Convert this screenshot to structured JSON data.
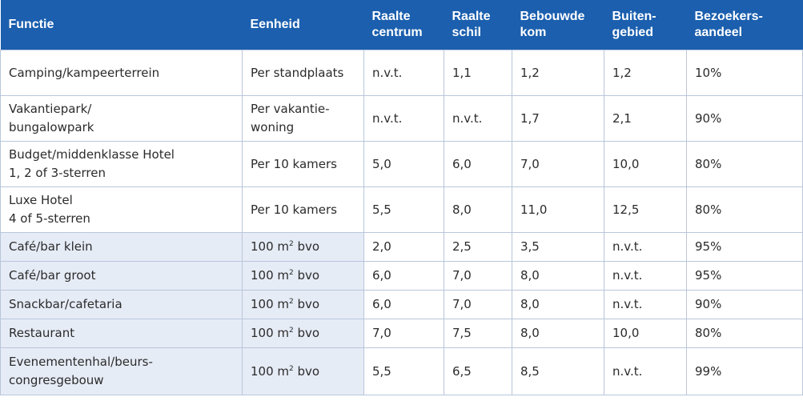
{
  "header": {
    "functie": [
      "Functie"
    ],
    "eenheid": [
      "Eenheid"
    ],
    "raalte_centrum": [
      "Raalte",
      "centrum"
    ],
    "raalte_schil": [
      "Raalte",
      "schil"
    ],
    "bebouwde_kom": [
      "Bebouwde",
      "kom"
    ],
    "buitengebied": [
      "Buiten-",
      "gebied"
    ],
    "bezoekersaandeel": [
      "Bezoekers-",
      "aandeel"
    ]
  },
  "rows": [
    {
      "functie": [
        "Camping/kampeerterrein"
      ],
      "eenheid": [
        "Per standplaats"
      ],
      "raalte_centrum": "n.v.t.",
      "raalte_schil": "1,1",
      "bebouwde_kom": "1,2",
      "buitengebied": "1,2",
      "bezoekersaandeel": "10%"
    },
    {
      "functie": [
        "Vakantiepark/",
        "bungalowpark"
      ],
      "eenheid": [
        "Per vakantie-",
        "woning"
      ],
      "raalte_centrum": "n.v.t.",
      "raalte_schil": "n.v.t.",
      "bebouwde_kom": "1,7",
      "buitengebied": "2,1",
      "bezoekersaandeel": "90%"
    },
    {
      "functie": [
        "Budget/middenklasse Hotel",
        "1, 2 of 3-sterren"
      ],
      "eenheid": [
        "Per 10 kamers"
      ],
      "raalte_centrum": "5,0",
      "raalte_schil": "6,0",
      "bebouwde_kom": "7,0",
      "buitengebied": "10,0",
      "bezoekersaandeel": "80%"
    },
    {
      "functie": [
        "Luxe Hotel",
        "4 of 5-sterren"
      ],
      "eenheid": [
        "Per 10 kamers"
      ],
      "raalte_centrum": "5,5",
      "raalte_schil": "8,0",
      "bebouwde_kom": "11,0",
      "buitengebied": "12,5",
      "bezoekersaandeel": "80%"
    },
    {
      "functie": [
        "Café/bar klein"
      ],
      "eenheid_prefix": "100 m",
      "eenheid_sup": "2",
      "eenheid_suffix": " bvo",
      "raalte_centrum": "2,0",
      "raalte_schil": "2,5",
      "bebouwde_kom": "3,5",
      "buitengebied": "n.v.t.",
      "bezoekersaandeel": "95%"
    },
    {
      "functie": [
        "Café/bar groot"
      ],
      "eenheid_prefix": "100 m",
      "eenheid_sup": "2",
      "eenheid_suffix": " bvo",
      "raalte_centrum": "6,0",
      "raalte_schil": "7,0",
      "bebouwde_kom": "8,0",
      "buitengebied": "n.v.t.",
      "bezoekersaandeel": "95%"
    },
    {
      "functie": [
        "Snackbar/cafetaria"
      ],
      "eenheid_prefix": "100 m",
      "eenheid_sup": "2",
      "eenheid_suffix": " bvo",
      "raalte_centrum": "6,0",
      "raalte_schil": "7,0",
      "bebouwde_kom": "8,0",
      "buitengebied": "n.v.t.",
      "bezoekersaandeel": "90%"
    },
    {
      "functie": [
        "Restaurant"
      ],
      "eenheid_prefix": "100 m",
      "eenheid_sup": "2",
      "eenheid_suffix": " bvo",
      "raalte_centrum": "7,0",
      "raalte_schil": "7,5",
      "bebouwde_kom": "8,0",
      "buitengebied": "10,0",
      "bezoekersaandeel": "80%"
    },
    {
      "functie": [
        "Evenementenhal/beurs-",
        "congresgebouw"
      ],
      "eenheid_prefix": "100 m",
      "eenheid_sup": "2",
      "eenheid_suffix": " bvo",
      "raalte_centrum": "5,5",
      "raalte_schil": "6,5",
      "bebouwde_kom": "8,5",
      "buitengebied": "n.v.t.",
      "bezoekersaandeel": "99%"
    }
  ],
  "colors": {
    "header_bg": "#1b5fae",
    "shaded_bg": "#e6ecf6",
    "border": "#b9c6da"
  }
}
